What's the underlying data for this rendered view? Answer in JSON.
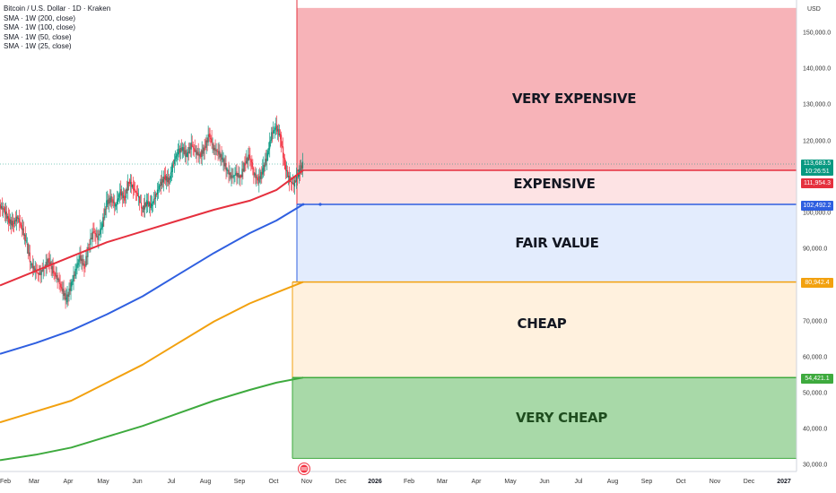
{
  "legend": {
    "title": "Bitcoin / U.S. Dollar · 1D · Kraken",
    "sma1": "SMA · 1W (200, close)",
    "sma2": "SMA · 1W (100, close)",
    "sma3": "SMA · 1W (50, close)",
    "sma4": "SMA · 1W (25, close)"
  },
  "axis": {
    "currency": "USD",
    "y_ticks": [
      "150,000.0",
      "140,000.0",
      "130,000.0",
      "120,000.0",
      "100,000.0",
      "90,000.0",
      "70,000.0",
      "60,000.0",
      "50,000.0",
      "40,000.0",
      "30,000.0"
    ],
    "x_ticks": [
      "Feb",
      "Mar",
      "Apr",
      "May",
      "Jun",
      "Jul",
      "Aug",
      "Sep",
      "Oct",
      "Nov",
      "Dec",
      "2026",
      "Feb",
      "Mar",
      "Apr",
      "May",
      "Jun",
      "Jul",
      "Aug",
      "Sep",
      "Oct",
      "Nov",
      "Dec",
      "2027"
    ]
  },
  "zones": {
    "very_expensive": "VERY EXPENSIVE",
    "expensive": "EXPENSIVE",
    "fair_value": "FAIR VALUE",
    "cheap": "CHEAP",
    "very_cheap": "VERY CHEAP"
  },
  "price_labels": {
    "current_price": "113,683.5",
    "countdown": "10:26:51",
    "sma200": "111,954.3",
    "sma100": "102,492.2",
    "sma50": "80,942.4",
    "sma25": "54,421.1"
  },
  "colors": {
    "very_expensive": "#f7b3b8",
    "expensive": "#fde3e4",
    "fair_value": "#e3ecfd",
    "cheap": "#fff1de",
    "very_cheap": "#a8d9a8",
    "red_line": "#e5303e",
    "blue_line": "#2f5fe0",
    "orange_line": "#f2a10f",
    "green_line": "#3eaa3e",
    "candle_up": "#089981",
    "candle_down": "#f23645"
  },
  "chart_data": {
    "type": "candlestick",
    "title": "Bitcoin / U.S. Dollar · 1D · Kraken",
    "ylabel": "USD",
    "ylim": [
      30000,
      157000
    ],
    "zones": [
      {
        "label": "VERY EXPENSIVE",
        "from": 111954.3,
        "to": 157000
      },
      {
        "label": "EXPENSIVE",
        "from": 102492.2,
        "to": 111954.3
      },
      {
        "label": "FAIR VALUE",
        "from": 80942.4,
        "to": 102492.2
      },
      {
        "label": "CHEAP",
        "from": 54421.1,
        "to": 80942.4
      },
      {
        "label": "VERY CHEAP",
        "from": 32000,
        "to": 54421.1
      }
    ],
    "price_path": [
      [
        0,
        102000
      ],
      [
        1,
        101000
      ],
      [
        2,
        98000
      ],
      [
        3,
        97000
      ],
      [
        4,
        99000
      ],
      [
        5,
        96000
      ],
      [
        6,
        92000
      ],
      [
        7,
        86000
      ],
      [
        8,
        84000
      ],
      [
        9,
        83000
      ],
      [
        10,
        85000
      ],
      [
        11,
        87000
      ],
      [
        12,
        84000
      ],
      [
        13,
        82000
      ],
      [
        14,
        79000
      ],
      [
        15,
        76000
      ],
      [
        16,
        80000
      ],
      [
        17,
        84000
      ],
      [
        18,
        88000
      ],
      [
        19,
        85000
      ],
      [
        20,
        91000
      ],
      [
        21,
        95000
      ],
      [
        22,
        93000
      ],
      [
        23,
        97000
      ],
      [
        24,
        103000
      ],
      [
        25,
        104000
      ],
      [
        26,
        102000
      ],
      [
        27,
        106000
      ],
      [
        28,
        104000
      ],
      [
        29,
        109000
      ],
      [
        30,
        107000
      ],
      [
        31,
        105000
      ],
      [
        32,
        101000
      ],
      [
        33,
        103000
      ],
      [
        34,
        102000
      ],
      [
        35,
        105000
      ],
      [
        36,
        108000
      ],
      [
        37,
        110000
      ],
      [
        38,
        109000
      ],
      [
        39,
        114000
      ],
      [
        40,
        117000
      ],
      [
        41,
        118000
      ],
      [
        42,
        116000
      ],
      [
        43,
        119000
      ],
      [
        44,
        117000
      ],
      [
        45,
        116000
      ],
      [
        46,
        118000
      ],
      [
        47,
        122000
      ],
      [
        48,
        118000
      ],
      [
        49,
        117000
      ],
      [
        50,
        115000
      ],
      [
        51,
        112000
      ],
      [
        52,
        110000
      ],
      [
        53,
        111000
      ],
      [
        54,
        110000
      ],
      [
        55,
        114000
      ],
      [
        56,
        116000
      ],
      [
        57,
        111000
      ],
      [
        58,
        109000
      ],
      [
        59,
        112000
      ],
      [
        60,
        116000
      ],
      [
        61,
        122000
      ],
      [
        62,
        124000
      ],
      [
        63,
        121000
      ],
      [
        64,
        113000
      ],
      [
        65,
        109000
      ],
      [
        66,
        108000
      ],
      [
        67,
        111000
      ],
      [
        68,
        113683.5
      ]
    ],
    "series": [
      {
        "name": "SMA · 1W (200, close)",
        "color": "#e5303e",
        "values": [
          [
            0,
            80000
          ],
          [
            8,
            84000
          ],
          [
            16,
            88000
          ],
          [
            24,
            92000
          ],
          [
            32,
            95000
          ],
          [
            40,
            98000
          ],
          [
            48,
            101000
          ],
          [
            56,
            103500
          ],
          [
            62,
            106500
          ],
          [
            68,
            111954.3
          ]
        ]
      },
      {
        "name": "SMA · 1W (100, close)",
        "color": "#2f5fe0",
        "values": [
          [
            0,
            61000
          ],
          [
            8,
            64000
          ],
          [
            16,
            67500
          ],
          [
            24,
            72000
          ],
          [
            32,
            77000
          ],
          [
            40,
            83000
          ],
          [
            48,
            89000
          ],
          [
            56,
            94500
          ],
          [
            62,
            98000
          ],
          [
            68,
            102492.2
          ]
        ]
      },
      {
        "name": "SMA · 1W (50, close)",
        "color": "#f2a10f",
        "values": [
          [
            0,
            42000
          ],
          [
            8,
            45000
          ],
          [
            16,
            48000
          ],
          [
            24,
            53000
          ],
          [
            32,
            58000
          ],
          [
            40,
            64000
          ],
          [
            48,
            70000
          ],
          [
            56,
            75000
          ],
          [
            62,
            78000
          ],
          [
            68,
            80942.4
          ]
        ]
      },
      {
        "name": "SMA · 1W (25, close)",
        "color": "#3eaa3e",
        "values": [
          [
            0,
            31500
          ],
          [
            8,
            33000
          ],
          [
            16,
            35000
          ],
          [
            24,
            38000
          ],
          [
            32,
            41000
          ],
          [
            40,
            44500
          ],
          [
            48,
            48000
          ],
          [
            56,
            51000
          ],
          [
            62,
            53000
          ],
          [
            68,
            54421.1
          ]
        ]
      }
    ]
  }
}
